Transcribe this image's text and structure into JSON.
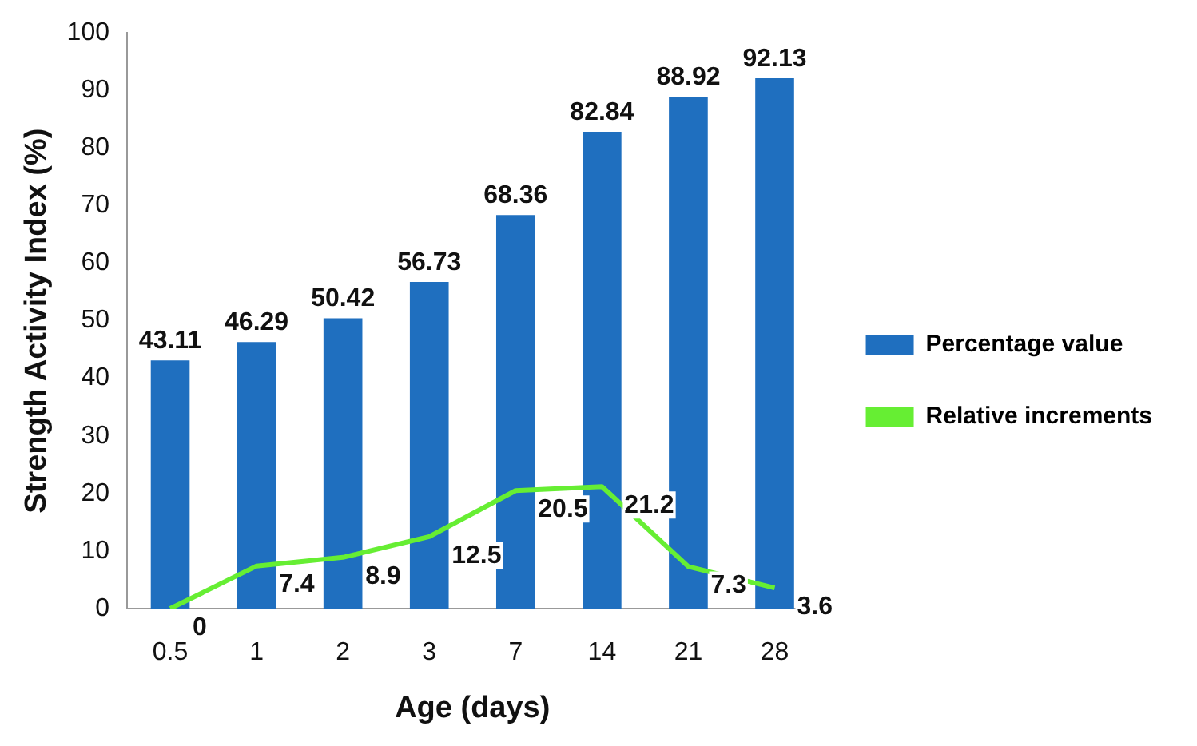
{
  "chart_data": {
    "type": "bar",
    "xlabel": "Age (days)",
    "ylabel": "Strength Activity Index (%)",
    "categories": [
      "0.5",
      "1",
      "2",
      "3",
      "7",
      "14",
      "21",
      "28"
    ],
    "series": [
      {
        "name": "Percentage value",
        "color": "#1f6fbf",
        "values": [
          43.11,
          46.29,
          50.42,
          56.73,
          68.36,
          82.84,
          88.92,
          92.13
        ]
      },
      {
        "name": "Relative increments",
        "type": "line",
        "color": "#66ee33",
        "values": [
          0,
          7.4,
          8.9,
          12.5,
          20.5,
          21.2,
          7.3,
          3.6
        ]
      }
    ],
    "ylim": [
      0,
      100
    ],
    "yticks": [
      0,
      10,
      20,
      30,
      40,
      50,
      60,
      70,
      80,
      90,
      100
    ],
    "grid": false,
    "legend": "right",
    "data_labels": true,
    "marker": "none"
  }
}
